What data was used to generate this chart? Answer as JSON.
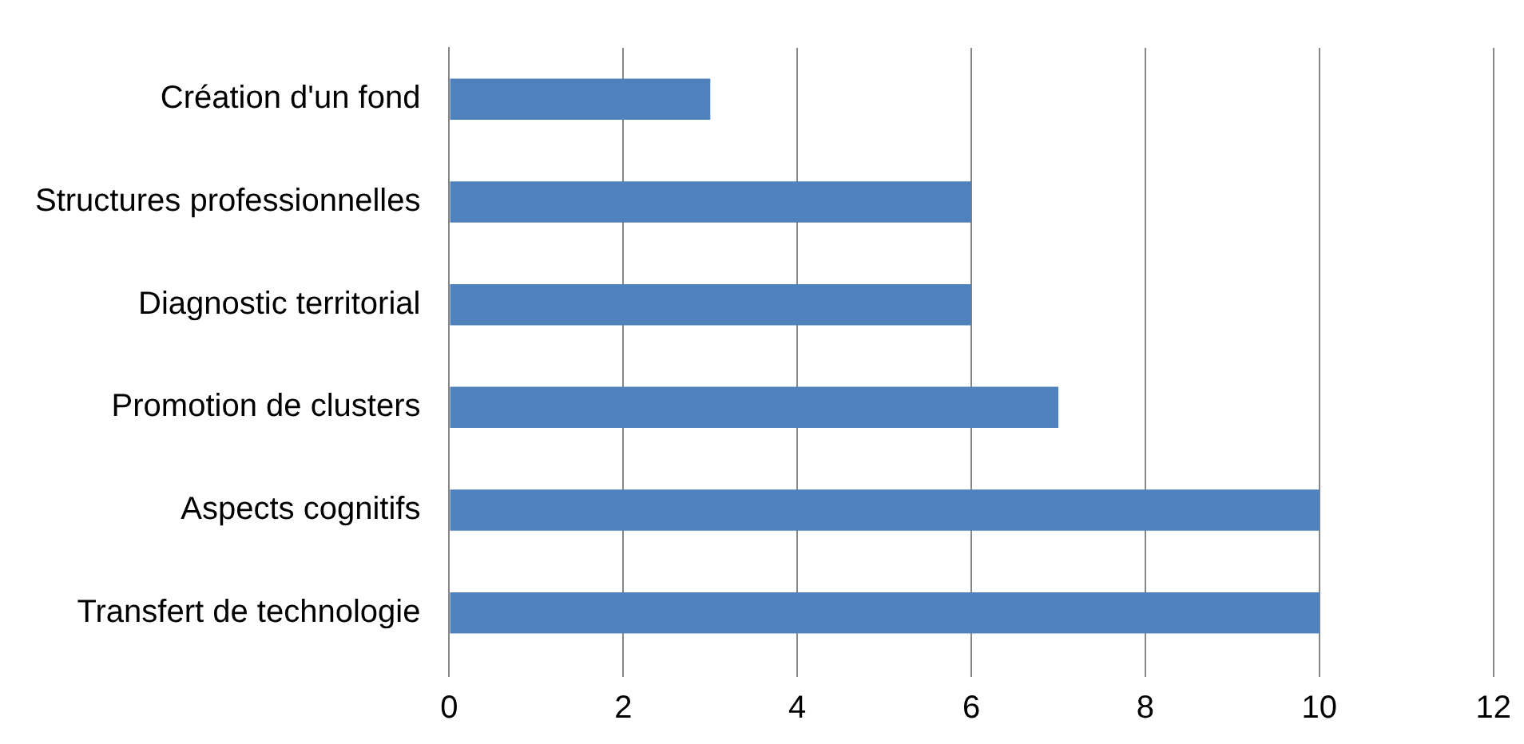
{
  "chart_data": {
    "type": "bar",
    "orientation": "horizontal",
    "categories": [
      "Création d'un fond",
      "Structures professionnelles",
      "Diagnostic territorial",
      "Promotion de clusters",
      "Aspects cognitifs",
      "Transfert de technologie"
    ],
    "values": [
      3,
      6,
      6,
      7,
      10,
      10
    ],
    "color": "#4f81bd",
    "xlim": [
      0,
      12
    ],
    "xticks": [
      0,
      2,
      4,
      6,
      8,
      10,
      12
    ],
    "grid": "x",
    "legend": false
  }
}
